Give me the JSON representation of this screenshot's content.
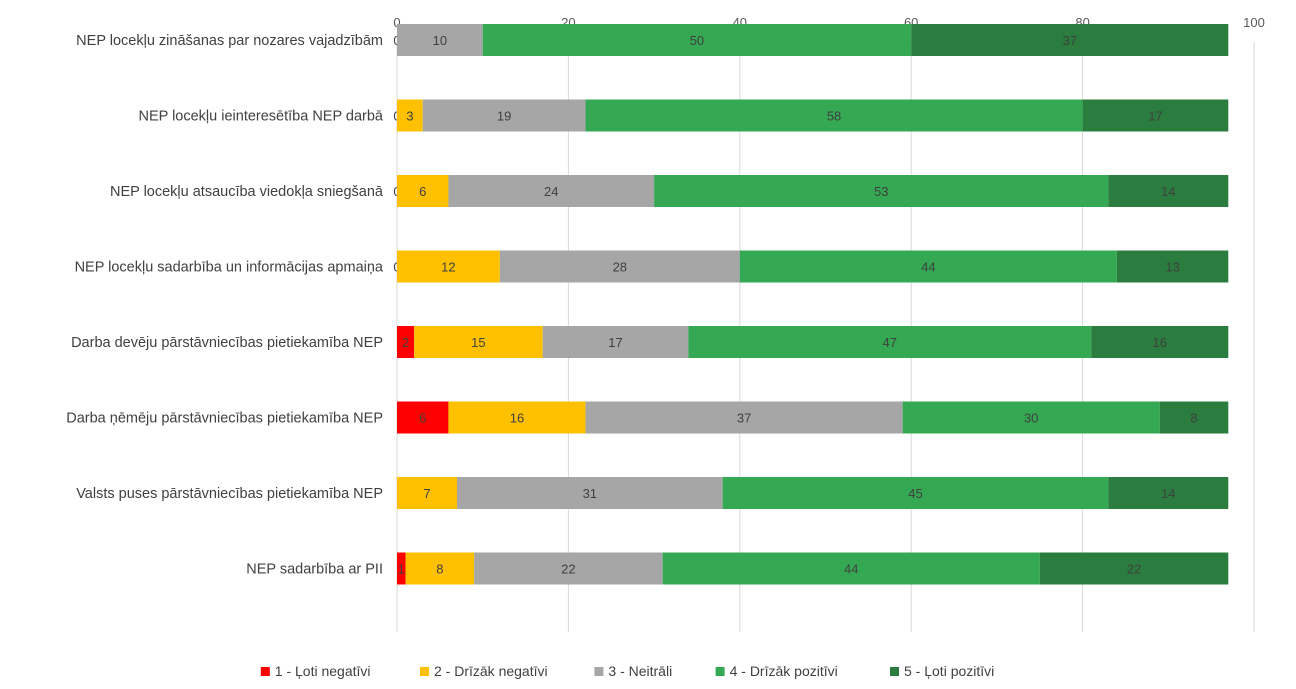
{
  "chart_data": {
    "type": "bar",
    "orientation": "horizontal",
    "stacked": true,
    "title": "",
    "xlabel": "",
    "ylabel": "",
    "xlim": [
      0,
      100
    ],
    "x_ticks": [
      0,
      20,
      40,
      60,
      80,
      100
    ],
    "x_axis_position": "top",
    "grid": true,
    "legend_position": "bottom",
    "categories": [
      "NEP locekļu zināšanas par nozares vajadzībām",
      "NEP locekļu ieinteresētība NEP darbā",
      "NEP locekļu atsaucība viedokļa sniegšanā",
      "NEP locekļu sadarbība un informācijas apmaiņa",
      "Darba devēju pārstāvniecības pietiekamība NEP",
      "Darba ņēmēju pārstāvniecības pietiekamība NEP",
      "Valsts puses pārstāvniecības pietiekamība NEP",
      "NEP sadarbība ar PII"
    ],
    "series": [
      {
        "name": "1 - Ļoti negatīvi",
        "color": "#ff0000",
        "values": [
          0,
          0,
          0,
          0,
          2,
          6,
          0,
          1
        ]
      },
      {
        "name": "2 - Drīzāk negatīvi",
        "color": "#ffc000",
        "values": [
          0,
          3,
          6,
          12,
          15,
          16,
          7,
          8
        ]
      },
      {
        "name": "3 - Neitrāli",
        "color": "#a6a6a6",
        "values": [
          10,
          19,
          24,
          28,
          17,
          37,
          31,
          22
        ]
      },
      {
        "name": "4 - Drīzāk pozitīvi",
        "color": "#34a853",
        "values": [
          50,
          58,
          53,
          44,
          47,
          30,
          45,
          44
        ]
      },
      {
        "name": "5 - Ļoti pozitīvi",
        "color": "#2a7d3e",
        "values": [
          37,
          17,
          14,
          13,
          16,
          8,
          14,
          22
        ]
      }
    ],
    "shown_labels": [
      [
        "0",
        "",
        "10",
        "50",
        "37"
      ],
      [
        "0",
        "3",
        "19",
        "58",
        "17"
      ],
      [
        "0",
        "6",
        "24",
        "53",
        "14"
      ],
      [
        "0",
        "12",
        "28",
        "44",
        "13"
      ],
      [
        "2",
        "15",
        "17",
        "47",
        "16"
      ],
      [
        "6",
        "16",
        "37",
        "30",
        "8"
      ],
      [
        "",
        "7",
        "31",
        "45",
        "14"
      ],
      [
        "1",
        "8",
        "22",
        "44",
        "22"
      ]
    ]
  }
}
